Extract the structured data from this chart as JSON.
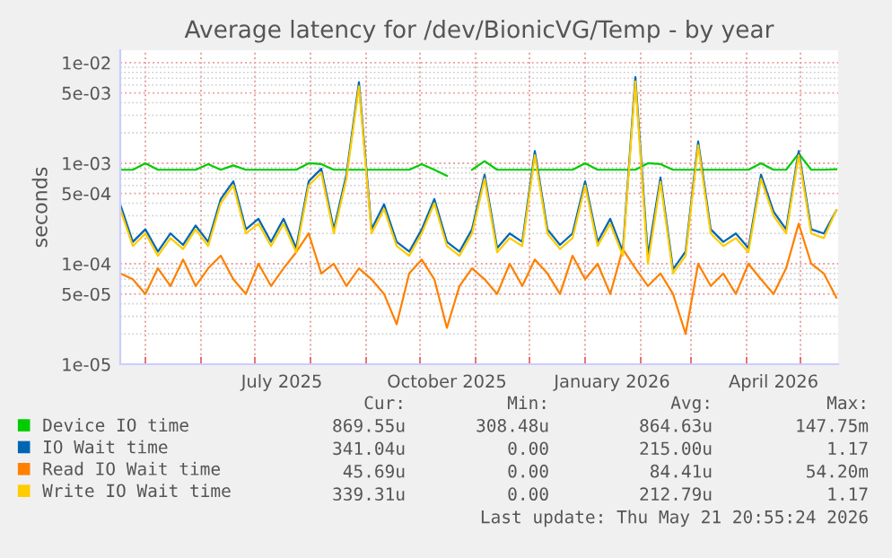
{
  "chart_data": {
    "type": "line",
    "title": "Average latency for /dev/BionicVG/Temp - by year",
    "ylabel": "seconds",
    "log": "y",
    "grid": true,
    "legend": "bottom",
    "xlim": [
      "2025-04-17",
      "2026-05-22"
    ],
    "xticks": [
      {
        "value": "2025-05-01",
        "label": null
      },
      {
        "value": "2025-06-01",
        "label": null
      },
      {
        "value": "2025-07-01",
        "label": null
      },
      {
        "value": "2025-07-16",
        "label": "July 2025"
      },
      {
        "value": "2025-08-01",
        "label": null
      },
      {
        "value": "2025-09-01",
        "label": null
      },
      {
        "value": "2025-10-01",
        "label": null
      },
      {
        "value": "2025-10-16",
        "label": "October 2025"
      },
      {
        "value": "2025-11-01",
        "label": null
      },
      {
        "value": "2025-12-01",
        "label": null
      },
      {
        "value": "2026-01-01",
        "label": null
      },
      {
        "value": "2026-01-16",
        "label": "January 2026"
      },
      {
        "value": "2026-02-01",
        "label": null
      },
      {
        "value": "2026-03-01",
        "label": null
      },
      {
        "value": "2026-04-01",
        "label": null
      },
      {
        "value": "2026-04-16",
        "label": "April 2026"
      },
      {
        "value": "2026-05-01",
        "label": null
      }
    ],
    "ylim": [
      1e-05,
      0.0133
    ],
    "yticks": [
      {
        "value": 1e-05,
        "label": "1e-05"
      },
      {
        "value": 5e-05,
        "label": "5e-05"
      },
      {
        "value": 0.0001,
        "label": "1e-04"
      },
      {
        "value": 0.0005,
        "label": "5e-04"
      },
      {
        "value": 0.001,
        "label": "1e-03"
      },
      {
        "value": 0.005,
        "label": "5e-03"
      },
      {
        "value": 0.01,
        "label": "1e-02"
      }
    ],
    "x": [
      "2025-04-17",
      "2025-04-24",
      "2025-05-01",
      "2025-05-08",
      "2025-05-15",
      "2025-05-22",
      "2025-05-29",
      "2025-06-05",
      "2025-06-12",
      "2025-06-19",
      "2025-06-26",
      "2025-07-03",
      "2025-07-10",
      "2025-07-17",
      "2025-07-24",
      "2025-07-31",
      "2025-08-07",
      "2025-08-14",
      "2025-08-21",
      "2025-08-28",
      "2025-09-04",
      "2025-09-11",
      "2025-09-18",
      "2025-09-25",
      "2025-10-02",
      "2025-10-09",
      "2025-10-16",
      "2025-10-23",
      "2025-10-30",
      "2025-11-06",
      "2025-11-13",
      "2025-11-20",
      "2025-11-27",
      "2025-12-04",
      "2025-12-11",
      "2025-12-18",
      "2025-12-25",
      "2026-01-01",
      "2026-01-08",
      "2026-01-15",
      "2026-01-22",
      "2026-01-29",
      "2026-02-05",
      "2026-02-12",
      "2026-02-19",
      "2026-02-26",
      "2026-03-05",
      "2026-03-12",
      "2026-03-19",
      "2026-03-26",
      "2026-04-02",
      "2026-04-09",
      "2026-04-16",
      "2026-04-23",
      "2026-04-30",
      "2026-05-07",
      "2026-05-14",
      "2026-05-21"
    ],
    "series": [
      {
        "name": "Device IO time",
        "color": "#00cc00",
        "values": [
          0.00086,
          0.00086,
          0.001,
          0.00086,
          0.00086,
          0.00086,
          0.00086,
          0.00098,
          0.00086,
          0.00095,
          0.00086,
          0.00086,
          0.00086,
          0.00086,
          0.00086,
          0.001,
          0.00098,
          0.00086,
          0.00086,
          0.00086,
          0.00086,
          0.00086,
          0.00086,
          0.00086,
          0.00098,
          0.00086,
          0.00075,
          null,
          0.00086,
          0.00105,
          0.00086,
          0.00086,
          0.00086,
          0.00086,
          0.00086,
          0.00086,
          0.00086,
          0.001,
          0.00086,
          0.00086,
          0.00086,
          0.00086,
          0.001,
          0.00098,
          0.00086,
          0.00086,
          0.00086,
          0.00086,
          0.00086,
          0.00086,
          0.00086,
          0.001,
          0.00086,
          0.00086,
          0.00125,
          0.00086,
          0.00086,
          0.00087
        ]
      },
      {
        "name": "IO Wait time",
        "color": "#0066b3",
        "values": [
          0.00039,
          0.000165,
          0.00022,
          0.000132,
          0.0002,
          0.000154,
          0.00024,
          0.000165,
          0.00044,
          0.00066,
          0.00022,
          0.00028,
          0.000165,
          0.00028,
          0.000143,
          0.00066,
          0.00088,
          0.00022,
          0.00077,
          0.0064,
          0.00022,
          0.00039,
          0.000165,
          0.000132,
          0.00022,
          0.00044,
          0.000165,
          0.000132,
          0.00022,
          0.00077,
          0.000143,
          0.0002,
          0.000165,
          0.00132,
          0.00022,
          0.000154,
          0.0002,
          0.00066,
          0.000165,
          0.00028,
          0.000132,
          0.0072,
          0.00012,
          0.00072,
          8.8e-05,
          0.000132,
          0.00165,
          0.00022,
          0.000165,
          0.0002,
          0.000143,
          0.00077,
          0.00033,
          0.00022,
          0.00132,
          0.00022,
          0.0002,
          0.00034
        ]
      },
      {
        "name": "Read IO Wait time",
        "color": "#ff8000",
        "values": [
          8e-05,
          7e-05,
          5e-05,
          9e-05,
          6e-05,
          0.00011,
          6e-05,
          9e-05,
          0.00012,
          7e-05,
          5e-05,
          0.0001,
          6e-05,
          9e-05,
          0.00013,
          0.0002,
          8e-05,
          0.0001,
          6e-05,
          9e-05,
          7e-05,
          5e-05,
          2.5e-05,
          8e-05,
          0.00011,
          7e-05,
          2.3e-05,
          6e-05,
          9e-05,
          7e-05,
          5e-05,
          0.0001,
          6e-05,
          0.00011,
          8e-05,
          5e-05,
          0.00012,
          7e-05,
          0.0001,
          5e-05,
          0.00014,
          9e-05,
          6e-05,
          8e-05,
          5e-05,
          2e-05,
          0.0001,
          6e-05,
          8e-05,
          5e-05,
          0.0001,
          7e-05,
          5e-05,
          9e-05,
          0.00025,
          0.0001,
          8e-05,
          4.6e-05
        ]
      },
      {
        "name": "Write IO Wait time",
        "color": "#ffcc00",
        "values": [
          0.00035,
          0.00015,
          0.0002,
          0.00012,
          0.00018,
          0.00014,
          0.00022,
          0.00015,
          0.0004,
          0.0006,
          0.0002,
          0.00025,
          0.00015,
          0.00025,
          0.00013,
          0.0006,
          0.0008,
          0.0002,
          0.0007,
          0.0058,
          0.0002,
          0.00035,
          0.00015,
          0.00012,
          0.0002,
          0.0004,
          0.00015,
          0.00012,
          0.0002,
          0.0007,
          0.00013,
          0.00018,
          0.00015,
          0.0012,
          0.0002,
          0.00014,
          0.00018,
          0.0006,
          0.00015,
          0.00025,
          0.00012,
          0.0065,
          0.0001,
          0.00065,
          8e-05,
          0.00012,
          0.0015,
          0.0002,
          0.00015,
          0.00018,
          0.00013,
          0.0007,
          0.0003,
          0.0002,
          0.0012,
          0.0002,
          0.00018,
          0.00034
        ]
      }
    ],
    "annotations": [
      "Cur:",
      "Min:",
      "Avg:",
      "Max:",
      "869.55u",
      "308.48u",
      "864.63u",
      "147.75m",
      "341.04u",
      "0.00",
      "215.00u",
      "1.17",
      "45.69u",
      "0.00",
      "84.41u",
      "54.20m",
      "339.31u",
      "0.00",
      "212.79u",
      "1.17",
      "Last update: Thu May 21 20:55:24 2026"
    ]
  }
}
